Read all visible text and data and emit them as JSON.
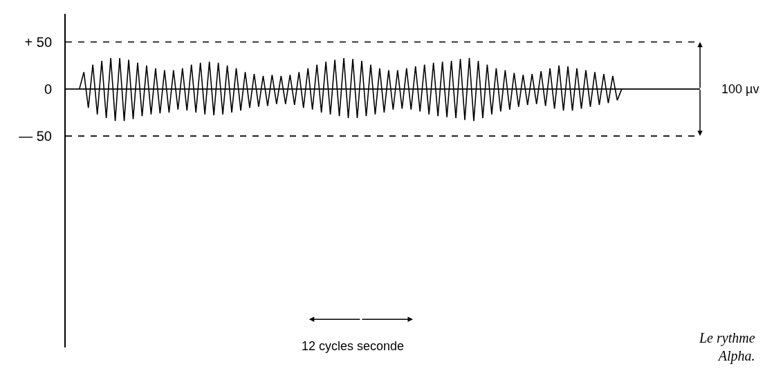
{
  "chart_data": {
    "type": "line",
    "categories": [
      null,
      null,
      null,
      null,
      null,
      null,
      null,
      null,
      null,
      null,
      null,
      null,
      null,
      null,
      null,
      null,
      null,
      null,
      null,
      null,
      null,
      null,
      null,
      null,
      null,
      null,
      null,
      null,
      null,
      null,
      null,
      null,
      null,
      null,
      null,
      null,
      null,
      null,
      null,
      null,
      null,
      null,
      null,
      null,
      null,
      null,
      null,
      null,
      null,
      null,
      null,
      null,
      null,
      null,
      null,
      null,
      null,
      null,
      null,
      null,
      null,
      null,
      null,
      null,
      null,
      null,
      null,
      null,
      null,
      null,
      null,
      null,
      null,
      null,
      null,
      null,
      null,
      null,
      null,
      null,
      null,
      null,
      null,
      null,
      null,
      null,
      null,
      null,
      null,
      null,
      null,
      null,
      null,
      null,
      null,
      null,
      null,
      null,
      null,
      null,
      null,
      null,
      null,
      null,
      null,
      null,
      null,
      null,
      null,
      null,
      null,
      null,
      null,
      null,
      null,
      null,
      null,
      null,
      null,
      null,
      null,
      null
    ],
    "series": [
      {
        "color": "#000000",
        "values": [
          0,
          18,
          -20,
          26,
          -27,
          30,
          -31,
          33,
          -34,
          33,
          -34,
          31,
          -32,
          28,
          -29,
          25,
          -27,
          22,
          -26,
          20,
          -25,
          20,
          -22,
          22,
          -23,
          26,
          -25,
          28,
          -27,
          29,
          -28,
          28,
          -27,
          25,
          -25,
          22,
          -23,
          18,
          -20,
          16,
          -19,
          14,
          -18,
          15,
          -16,
          14,
          -16,
          15,
          -17,
          18,
          -20,
          22,
          -22,
          26,
          -25,
          29,
          -27,
          31,
          -29,
          33,
          -31,
          32,
          -31,
          30,
          -29,
          26,
          -27,
          22,
          -25,
          20,
          -22,
          20,
          -21,
          22,
          -22,
          24,
          -24,
          26,
          -27,
          28,
          -29,
          29,
          -30,
          30,
          -31,
          32,
          -33,
          33,
          -34,
          30,
          -31,
          26,
          -27,
          22,
          -24,
          20,
          -22,
          17,
          -19,
          15,
          -17,
          16,
          -16,
          19,
          -18,
          22,
          -21,
          25,
          -23,
          24,
          -23,
          22,
          -21,
          20,
          -19,
          18,
          -17,
          16,
          -15,
          14,
          -12,
          0
        ]
      }
    ],
    "ylim": [
      -275,
      80
    ],
    "yticks": [
      {
        "value": 50,
        "label": "+ 50"
      },
      0,
      {
        "value": -50,
        "label": "— 50"
      }
    ],
    "ref_lines": [
      {
        "axis": "y",
        "value": 50,
        "line_style": "dashed"
      },
      {
        "axis": "y",
        "value": 0,
        "line_style": "solid"
      },
      {
        "axis": "y",
        "value": -50,
        "line_style": "dashed"
      }
    ],
    "annotations": [
      "100 µv",
      "12 cycles seconde",
      "Le rythme\nAlpha."
    ],
    "tick_labels": "y",
    "marker": "none",
    "line_style": "solid"
  }
}
